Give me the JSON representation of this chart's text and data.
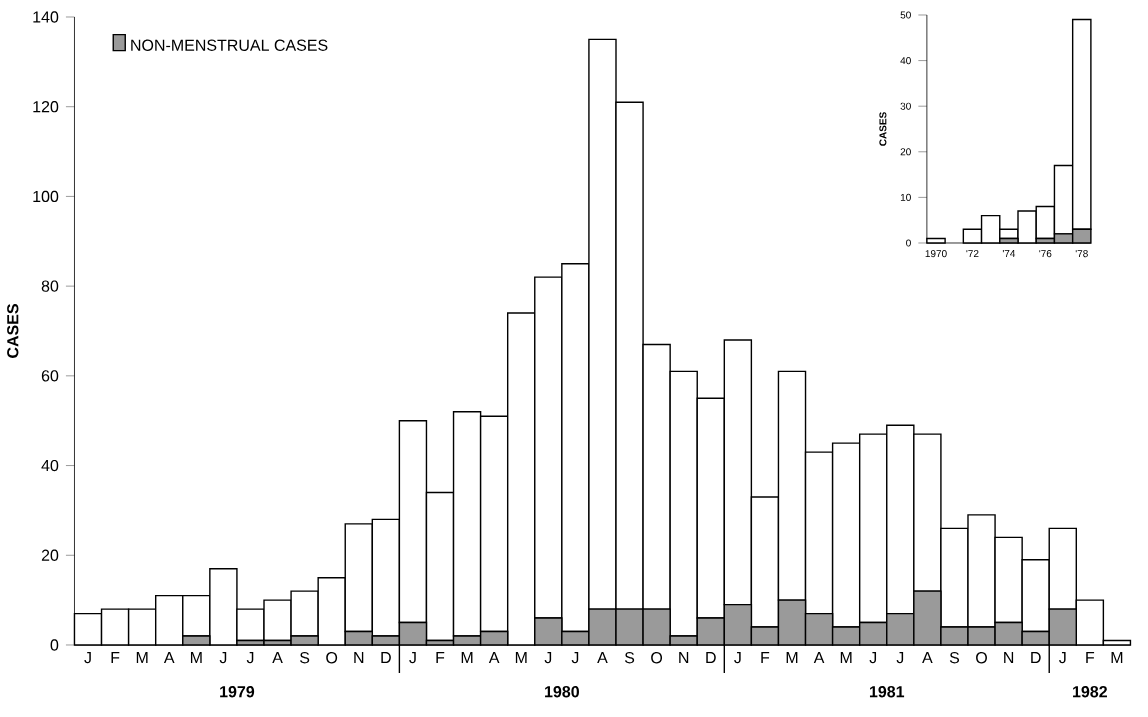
{
  "chart_data": [
    {
      "type": "bar",
      "stacked": true,
      "ylabel": "CASES",
      "legend": "top left",
      "ylim": [
        0,
        140
      ],
      "yticks": [
        0,
        20,
        40,
        60,
        80,
        100,
        120,
        140
      ],
      "categories": [
        "J",
        "F",
        "M",
        "A",
        "M",
        "J",
        "J",
        "A",
        "S",
        "O",
        "N",
        "D",
        "J",
        "F",
        "M",
        "A",
        "M",
        "J",
        "J",
        "A",
        "S",
        "O",
        "N",
        "D",
        "J",
        "F",
        "M",
        "A",
        "M",
        "J",
        "J",
        "A",
        "S",
        "O",
        "N",
        "D",
        "J",
        "F",
        "M"
      ],
      "series": [
        {
          "name": "NON-MENSTRUAL CASES",
          "color": "#9a9a9a",
          "values": [
            0,
            0,
            0,
            0,
            2,
            0,
            1,
            1,
            2,
            0,
            3,
            2,
            5,
            1,
            2,
            3,
            0,
            6,
            3,
            8,
            8,
            8,
            2,
            6,
            9,
            4,
            10,
            7,
            4,
            5,
            7,
            12,
            4,
            4,
            5,
            3,
            8,
            0,
            0
          ]
        },
        {
          "color": "#ffffff",
          "values": [
            7,
            8,
            8,
            11,
            9,
            17,
            7,
            9,
            10,
            15,
            24,
            26,
            45,
            33,
            50,
            48,
            74,
            76,
            82,
            127,
            113,
            59,
            59,
            49,
            59,
            29,
            51,
            36,
            41,
            42,
            42,
            35,
            22,
            25,
            19,
            16,
            18,
            10,
            1
          ]
        }
      ],
      "annotations": [
        "1979",
        "1980",
        "1981",
        "1982"
      ]
    },
    {
      "type": "bar",
      "stacked": true,
      "ylabel": "CASES",
      "ylim": [
        0,
        50
      ],
      "yticks": [
        0,
        10,
        20,
        30,
        40,
        50
      ],
      "categories": [
        "1970",
        null,
        "'72",
        null,
        "'74",
        null,
        "'76",
        null,
        "'78"
      ],
      "series": [
        {
          "color": "#9a9a9a",
          "values": [
            0,
            0,
            0,
            0,
            1,
            0,
            1,
            2,
            3
          ]
        },
        {
          "color": "#ffffff",
          "values": [
            1,
            0,
            3,
            6,
            2,
            7,
            7,
            15,
            46
          ]
        }
      ]
    }
  ]
}
